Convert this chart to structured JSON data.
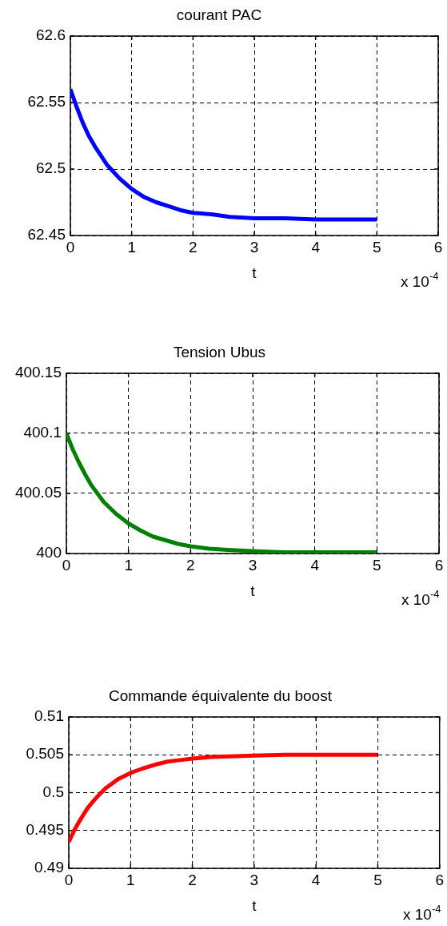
{
  "chart_data": [
    {
      "type": "line",
      "title": "courant PAC",
      "xlabel": "t",
      "x": [
        0,
        0.1,
        0.2,
        0.3,
        0.4,
        0.5,
        0.6,
        0.7,
        0.8,
        0.9,
        1,
        1.2,
        1.4,
        1.6,
        1.8,
        2,
        2.3,
        2.6,
        3,
        3.5,
        4,
        4.5,
        5
      ],
      "values": [
        62.56,
        62.547,
        62.535,
        62.525,
        62.517,
        62.51,
        62.503,
        62.498,
        62.493,
        62.489,
        62.485,
        62.479,
        62.475,
        62.472,
        62.469,
        62.467,
        62.466,
        62.464,
        62.463,
        62.463,
        62.462,
        62.462,
        62.462
      ],
      "color": "#0000ff",
      "xlim": [
        0,
        6
      ],
      "xticks": [
        0,
        1,
        2,
        3,
        4,
        5,
        6
      ],
      "ylim": [
        62.45,
        62.6
      ],
      "yticks": [
        62.45,
        62.5,
        62.55,
        62.6
      ],
      "grid": true,
      "annotations": [
        "x 10$^{-4}$"
      ]
    },
    {
      "type": "line",
      "title": "Tension Ubus",
      "xlabel": "t",
      "x": [
        0,
        0.1,
        0.2,
        0.3,
        0.4,
        0.5,
        0.6,
        0.7,
        0.8,
        0.9,
        1,
        1.2,
        1.4,
        1.6,
        1.8,
        2,
        2.3,
        2.6,
        3,
        3.5,
        4,
        4.5,
        5
      ],
      "values": [
        400.1,
        400.087,
        400.076,
        400.066,
        400.057,
        400.05,
        400.043,
        400.038,
        400.033,
        400.029,
        400.025,
        400.019,
        400.014,
        400.011,
        400.008,
        400.006,
        400.004,
        400.003,
        400.002,
        400.001,
        400.001,
        400.001,
        400.001
      ],
      "color": "#008000",
      "xlim": [
        0,
        6
      ],
      "xticks": [
        0,
        1,
        2,
        3,
        4,
        5,
        6
      ],
      "ylim": [
        400,
        400.15
      ],
      "yticks": [
        400,
        400.05,
        400.1,
        400.15
      ],
      "grid": true,
      "annotations": [
        "x 10$^{-4}$"
      ]
    },
    {
      "type": "line",
      "title": "Commande équivalente du boost",
      "xlabel": "t",
      "x": [
        0,
        0.1,
        0.2,
        0.3,
        0.4,
        0.5,
        0.6,
        0.7,
        0.8,
        0.9,
        1,
        1.2,
        1.4,
        1.6,
        1.8,
        2,
        2.3,
        2.6,
        3,
        3.5,
        4,
        4.5,
        5
      ],
      "values": [
        0.4935,
        0.4952,
        0.4966,
        0.4979,
        0.4989,
        0.4998,
        0.5006,
        0.5012,
        0.5018,
        0.5022,
        0.5026,
        0.5032,
        0.5037,
        0.5041,
        0.5043,
        0.5045,
        0.5047,
        0.5048,
        0.5049,
        0.505,
        0.505,
        0.505,
        0.505
      ],
      "color": "#ff0000",
      "xlim": [
        0,
        6
      ],
      "xticks": [
        0,
        1,
        2,
        3,
        4,
        5,
        6
      ],
      "ylim": [
        0.49,
        0.51
      ],
      "yticks": [
        0.49,
        0.495,
        0.5,
        0.505,
        0.51
      ],
      "grid": true,
      "annotations": [
        "x 10$^{-4}$"
      ]
    }
  ]
}
